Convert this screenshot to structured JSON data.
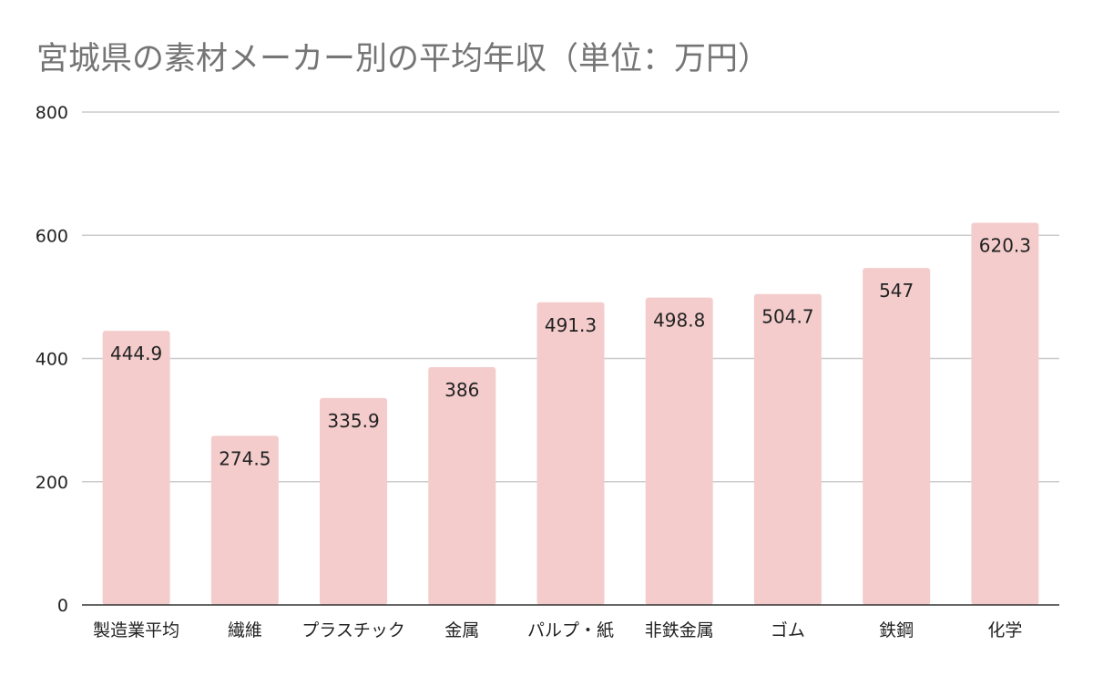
{
  "chart_data": {
    "type": "bar",
    "title": "宮城県の素材メーカー別の平均年収（単位：万円）",
    "xlabel": "",
    "ylabel": "",
    "categories": [
      "製造業平均",
      "繊維",
      "プラスチック",
      "金属",
      "パルプ・紙",
      "非鉄金属",
      "ゴム",
      "鉄鋼",
      "化学"
    ],
    "values": [
      444.9,
      274.5,
      335.9,
      386,
      491.3,
      498.8,
      504.7,
      547,
      620.3
    ],
    "data_labels": [
      "444.9",
      "274.5",
      "335.9",
      "386",
      "491.3",
      "498.8",
      "504.7",
      "547",
      "620.3"
    ],
    "ylim": [
      0,
      800
    ],
    "yticks": [
      0,
      200,
      400,
      600,
      800
    ],
    "grid": true,
    "legend": "none",
    "bar_color": "#f4cccc"
  }
}
